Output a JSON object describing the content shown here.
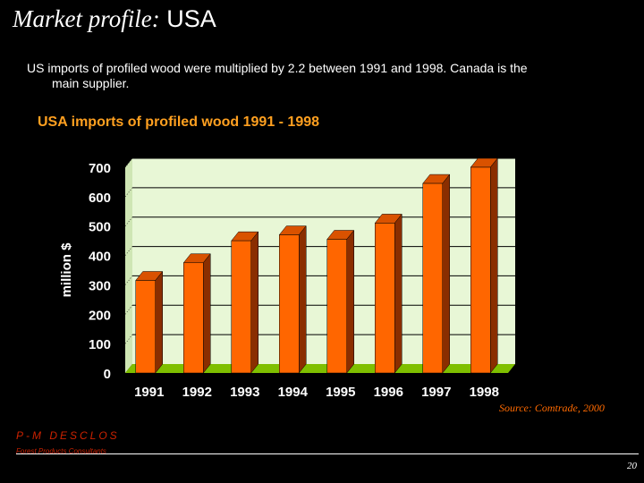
{
  "slide": {
    "title_part1": "Market profile:",
    "title_part2": "USA",
    "intro_line1": "US imports of profiled wood were multiplied by 2.2 between 1991 and 1998. Canada is the",
    "intro_line2": "main supplier.",
    "source": "Source: Comtrade, 2000",
    "brand": "P-M  DESCLOS",
    "tagline": "Forest Products Consultants",
    "page_number": "20"
  },
  "colors": {
    "background": "#000000",
    "plot_area": "#e8f7d6",
    "bar_face": "#ff6600",
    "bar_side": "#8a2e00",
    "bar_top": "#d95200",
    "floor": "#7fbf00",
    "title_accent": "#ffa020",
    "brand": "#cc2200"
  },
  "chart_data": {
    "type": "bar",
    "title": "USA imports of profiled wood 1991 - 1998",
    "ylabel": "million $",
    "xlabel": "",
    "categories": [
      "1991",
      "1992",
      "1993",
      "1994",
      "1995",
      "1996",
      "1997",
      "1998"
    ],
    "values": [
      315,
      375,
      450,
      470,
      455,
      510,
      645,
      700
    ],
    "ylim": [
      0,
      700
    ],
    "yticks": [
      0,
      100,
      200,
      300,
      400,
      500,
      600,
      700
    ],
    "grid": true,
    "legend": "none",
    "style": "3d"
  }
}
